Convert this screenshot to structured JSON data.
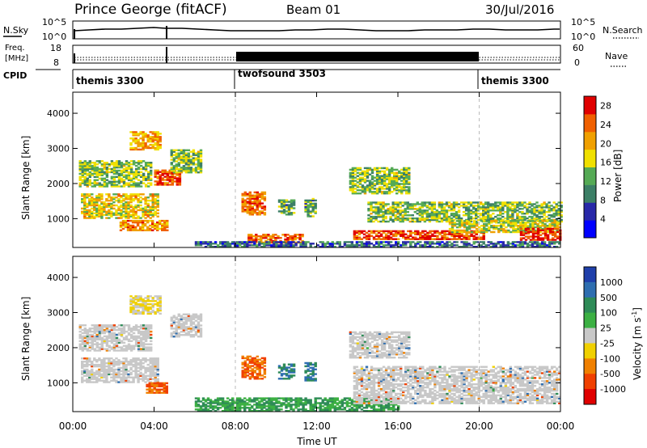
{
  "header": {
    "station": "Prince George (fitACF)",
    "beam": "Beam 01",
    "date": "30/Jul/2016"
  },
  "top_panel": {
    "left_label": "N.Sky",
    "right_label": "N.Search",
    "left_ticks": [
      "10^5",
      "10^0"
    ],
    "right_ticks": [
      "10^5",
      "10^0"
    ]
  },
  "freq_panel": {
    "left_label_1": "Freq.",
    "left_label_2": "[MHz]",
    "right_label": "Nave",
    "left_ticks": [
      "18",
      "8"
    ],
    "right_ticks": [
      "60",
      "0"
    ]
  },
  "cpid_panel": {
    "label": "CPID",
    "segments": [
      {
        "name": "themis 3300",
        "start": 0,
        "end": 8.0
      },
      {
        "name": "twofsound 3503",
        "start": 8.0,
        "end": 20.0
      },
      {
        "name": "themis 3300",
        "start": 20.0,
        "end": 24.0
      }
    ]
  },
  "colors": {
    "power": [
      "#0000ff",
      "#2828a8",
      "#3c7f66",
      "#55aa55",
      "#f0e000",
      "#f0a000",
      "#f06000",
      "#e00000"
    ],
    "velocity": [
      "#1f3faa",
      "#2e6eb0",
      "#2e8b57",
      "#3cb043",
      "#c8c8c8",
      "#f0d000",
      "#f08000",
      "#f04000",
      "#e00000"
    ]
  },
  "chart_data": [
    {
      "type": "heatmap",
      "name": "power",
      "ylabel": "Slant Range [km]",
      "xlabel": "Time UT",
      "x_ticks": [
        "00:00",
        "04:00",
        "08:00",
        "12:00",
        "16:00",
        "20:00",
        "00:00"
      ],
      "y_ticks": [
        "1000",
        "2000",
        "3000",
        "4000"
      ],
      "xlim": [
        0,
        24
      ],
      "ylim": [
        180,
        4600
      ],
      "colorbar": {
        "label": "Power [dB]",
        "ticks": [
          "4",
          "8",
          "12",
          "16",
          "20",
          "24",
          "28"
        ],
        "range": [
          0,
          30
        ]
      },
      "regions": [
        {
          "t0": 0.3,
          "t1": 3.9,
          "r0": 1900,
          "r1": 2650,
          "level": 14
        },
        {
          "t0": 0.4,
          "t1": 4.2,
          "r0": 1000,
          "r1": 1700,
          "level": 18
        },
        {
          "t0": 2.3,
          "t1": 4.6,
          "r0": 650,
          "r1": 950,
          "level": 22
        },
        {
          "t0": 2.8,
          "t1": 4.3,
          "r0": 2950,
          "r1": 3450,
          "level": 20
        },
        {
          "t0": 4.0,
          "t1": 5.3,
          "r0": 1950,
          "r1": 2400,
          "level": 26
        },
        {
          "t0": 4.8,
          "t1": 6.3,
          "r0": 2300,
          "r1": 2950,
          "level": 14
        },
        {
          "t0": 8.3,
          "t1": 9.4,
          "r0": 1100,
          "r1": 1750,
          "level": 24
        },
        {
          "t0": 10.1,
          "t1": 10.9,
          "r0": 1100,
          "r1": 1550,
          "level": 12
        },
        {
          "t0": 11.4,
          "t1": 11.9,
          "r0": 1050,
          "r1": 1550,
          "level": 12
        },
        {
          "t0": 8.6,
          "t1": 11.3,
          "r0": 300,
          "r1": 550,
          "level": 24
        },
        {
          "t0": 6.0,
          "t1": 24.0,
          "r0": 180,
          "r1": 350,
          "level": 8
        },
        {
          "t0": 13.8,
          "t1": 20.2,
          "r0": 400,
          "r1": 650,
          "level": 26
        },
        {
          "t0": 14.5,
          "t1": 24.0,
          "r0": 900,
          "r1": 1450,
          "level": 14
        },
        {
          "t0": 13.6,
          "t1": 16.5,
          "r0": 1700,
          "r1": 2450,
          "level": 14
        },
        {
          "t0": 18.5,
          "t1": 24.0,
          "r0": 600,
          "r1": 950,
          "level": 16
        },
        {
          "t0": 22.0,
          "t1": 24.0,
          "r0": 380,
          "r1": 720,
          "level": 28
        }
      ]
    },
    {
      "type": "heatmap",
      "name": "velocity",
      "ylabel": "Slant Range [km]",
      "xlabel": "Time UT",
      "x_ticks": [
        "00:00",
        "04:00",
        "08:00",
        "12:00",
        "16:00",
        "20:00",
        "00:00"
      ],
      "y_ticks": [
        "1000",
        "2000",
        "3000",
        "4000"
      ],
      "xlim": [
        0,
        24
      ],
      "ylim": [
        180,
        4600
      ],
      "colorbar": {
        "label": "Velocity [m s^-1]",
        "ticks": [
          "1000",
          "500",
          "100",
          "25",
          "-25",
          "-100",
          "-500",
          "-1000"
        ]
      },
      "regions": [
        {
          "t0": 0.3,
          "t1": 3.9,
          "r0": 1900,
          "r1": 2650,
          "level": 0
        },
        {
          "t0": 0.4,
          "t1": 4.2,
          "r0": 1000,
          "r1": 1700,
          "level": 0
        },
        {
          "t0": 3.6,
          "t1": 4.6,
          "r0": 700,
          "r1": 1000,
          "level": -500
        },
        {
          "t0": 2.8,
          "t1": 4.3,
          "r0": 2950,
          "r1": 3450,
          "level": -25
        },
        {
          "t0": 4.8,
          "t1": 6.3,
          "r0": 2300,
          "r1": 2950,
          "level": 0
        },
        {
          "t0": 8.3,
          "t1": 9.4,
          "r0": 1100,
          "r1": 1750,
          "level": -500
        },
        {
          "t0": 10.1,
          "t1": 10.9,
          "r0": 1100,
          "r1": 1550,
          "level": 300
        },
        {
          "t0": 11.4,
          "t1": 11.9,
          "r0": 1050,
          "r1": 1550,
          "level": 300
        },
        {
          "t0": 6.0,
          "t1": 16.0,
          "r0": 180,
          "r1": 550,
          "level": 60
        },
        {
          "t0": 13.8,
          "t1": 24.0,
          "r0": 400,
          "r1": 1450,
          "level": 0
        },
        {
          "t0": 13.6,
          "t1": 16.5,
          "r0": 1700,
          "r1": 2450,
          "level": 0
        }
      ]
    }
  ]
}
